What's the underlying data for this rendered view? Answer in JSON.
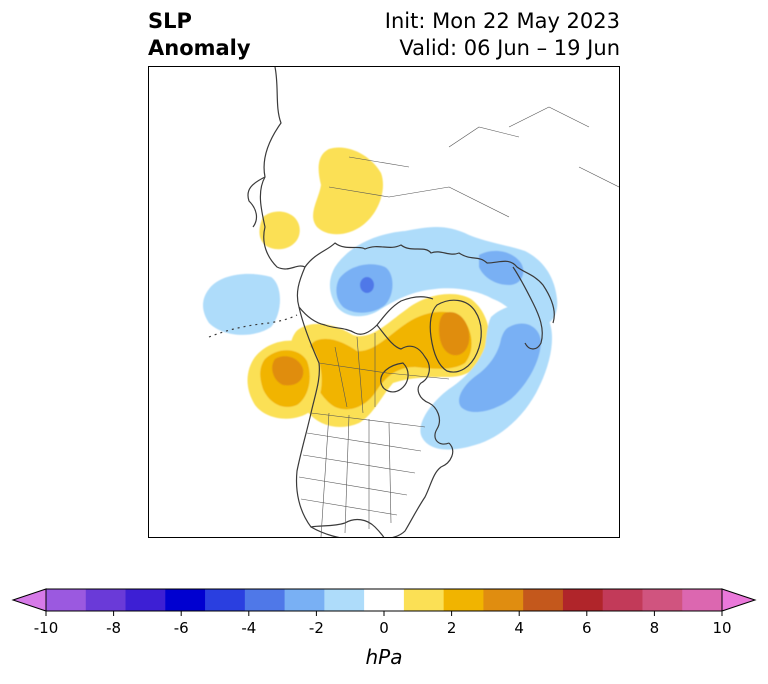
{
  "title": {
    "left_line1": "SLP",
    "left_line2": "Anomaly",
    "right_line1": "Init: Mon 22 May 2023",
    "right_line2": "Valid: 06 Jun – 19 Jun"
  },
  "map": {
    "projection": "north-polar",
    "anomaly_features": [
      {
        "name": "positive-anomaly-siberia",
        "sign": "positive",
        "peak_hpa": 2
      },
      {
        "name": "positive-anomaly-east-siberia",
        "sign": "positive",
        "peak_hpa": 2
      },
      {
        "name": "negative-anomaly-arctic-ocean",
        "sign": "negative",
        "peak_hpa": -4
      },
      {
        "name": "negative-anomaly-alaska-pacific",
        "sign": "negative",
        "peak_hpa": -2
      },
      {
        "name": "positive-anomaly-canada-greenland",
        "sign": "positive",
        "peak_hpa": 4
      },
      {
        "name": "positive-anomaly-ne-pacific",
        "sign": "positive",
        "peak_hpa": 4
      },
      {
        "name": "negative-anomaly-north-atlantic",
        "sign": "negative",
        "peak_hpa": -4
      },
      {
        "name": "negative-anomaly-barents-kara",
        "sign": "negative",
        "peak_hpa": -2
      }
    ]
  },
  "colorbar": {
    "unit": "hPa",
    "tick_labels": [
      "-10",
      "-8",
      "-6",
      "-4",
      "-2",
      "0",
      "2",
      "4",
      "6",
      "8",
      "10"
    ],
    "colors": [
      "#d67ae8",
      "#9b59e0",
      "#6a3ad8",
      "#3d1fd4",
      "#0000d0",
      "#2a3fe0",
      "#4f78e8",
      "#79b0f4",
      "#aedcfa",
      "#ffffff",
      "#fbe055",
      "#f1b400",
      "#e08d10",
      "#c4581c",
      "#b0252a",
      "#c23a59",
      "#d0547f",
      "#dc67b0",
      "#ea78da"
    ],
    "extend": "both"
  }
}
